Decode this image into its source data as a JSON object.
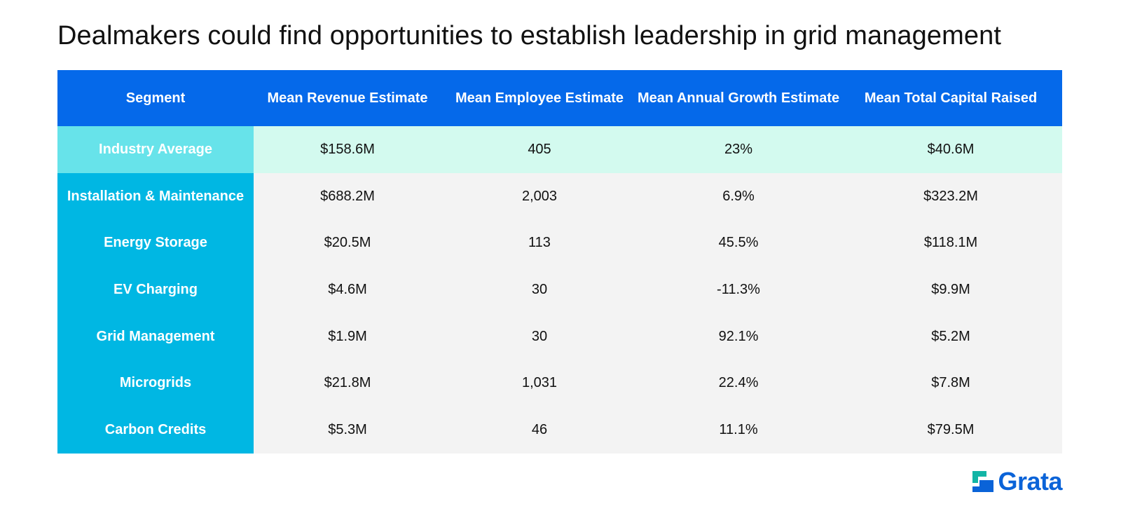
{
  "chart_data": {
    "type": "table",
    "title": "Dealmakers could find opportunities to establish leadership in grid management",
    "columns": [
      "Segment",
      "Mean Revenue Estimate",
      "Mean Employee Estimate",
      "Mean Annual Growth Estimate",
      "Mean Total Capital Raised"
    ],
    "rows": [
      {
        "segment": "Industry Average",
        "revenue": "$158.6M",
        "employees": "405",
        "growth": "23%",
        "capital": "$40.6M",
        "highlight": true
      },
      {
        "segment": "Installation & Maintenance",
        "revenue": "$688.2M",
        "employees": "2,003",
        "growth": "6.9%",
        "capital": "$323.2M",
        "highlight": false
      },
      {
        "segment": "Energy Storage",
        "revenue": "$20.5M",
        "employees": "113",
        "growth": "45.5%",
        "capital": "$118.1M",
        "highlight": false
      },
      {
        "segment": "EV Charging",
        "revenue": "$4.6M",
        "employees": "30",
        "growth": "-11.3%",
        "capital": "$9.9M",
        "highlight": false
      },
      {
        "segment": "Grid Management",
        "revenue": "$1.9M",
        "employees": "30",
        "growth": "92.1%",
        "capital": "$5.2M",
        "highlight": false
      },
      {
        "segment": "Microgrids",
        "revenue": "$21.8M",
        "employees": "1,031",
        "growth": "22.4%",
        "capital": "$7.8M",
        "highlight": false
      },
      {
        "segment": "Carbon Credits",
        "revenue": "$5.3M",
        "employees": "46",
        "growth": "11.1%",
        "capital": "$79.5M",
        "highlight": false
      }
    ]
  },
  "brand": {
    "name": "Grata",
    "logo_icon": "grata-logo-icon"
  },
  "colors": {
    "header_bg": "#0569ea",
    "segment_bg": "#00b7e3",
    "highlight_segment_bg": "#67e3ea",
    "highlight_row_bg": "#d3faef",
    "row_bg": "#f3f3f3",
    "brand_blue": "#0a63d8",
    "brand_teal": "#12b5a6"
  }
}
